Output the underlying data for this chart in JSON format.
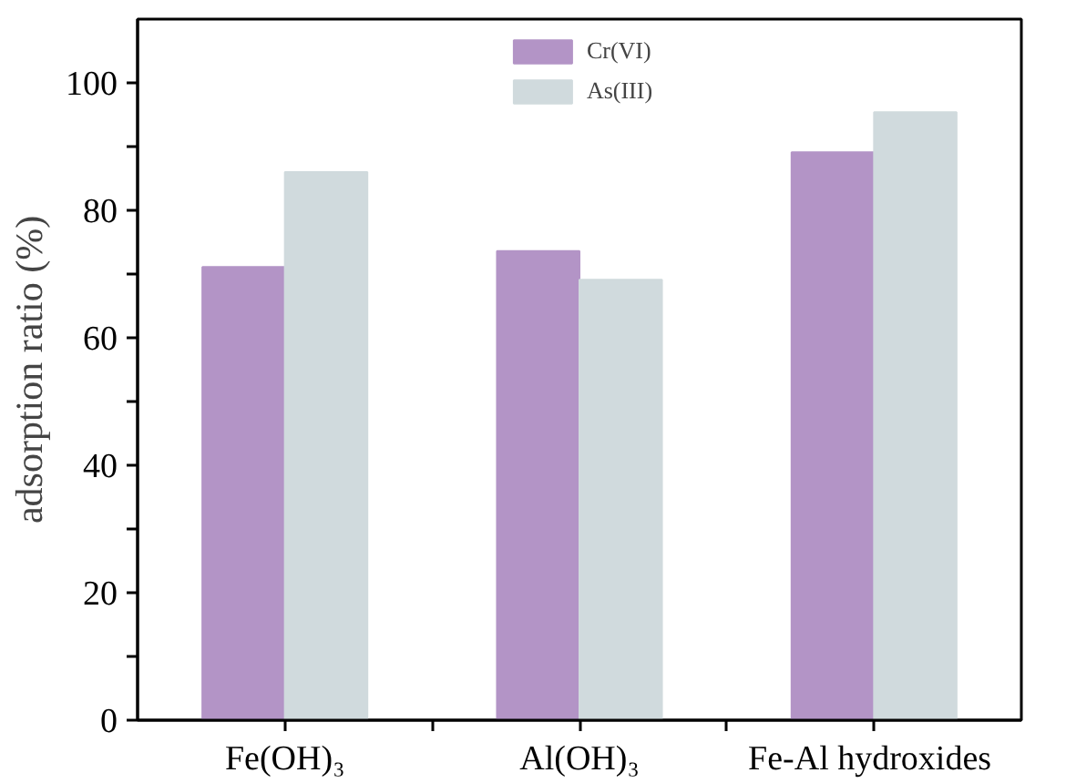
{
  "chart_data": {
    "type": "bar",
    "ylabel": "adsorption ratio (%)",
    "categories": [
      "Fe(OH)₃",
      "Al(OH)₃",
      "Fe-Al  hydroxides"
    ],
    "series": [
      {
        "name": "Cr(VI)",
        "color": "#b394c6",
        "values": [
          71.1,
          73.6,
          89.1
        ]
      },
      {
        "name": "As(III)",
        "color": "#d0dadd",
        "values": [
          86.0,
          69.1,
          95.4
        ]
      }
    ],
    "ylim": [
      0,
      110
    ],
    "yticks": [
      0,
      {
        "value": 10,
        "label": null
      },
      20,
      {
        "value": 30,
        "label": null
      },
      40,
      {
        "value": 50,
        "label": null
      },
      60,
      {
        "value": 70,
        "label": null
      },
      80,
      {
        "value": 90,
        "label": null
      },
      100
    ],
    "grid": false,
    "legend": "top"
  }
}
